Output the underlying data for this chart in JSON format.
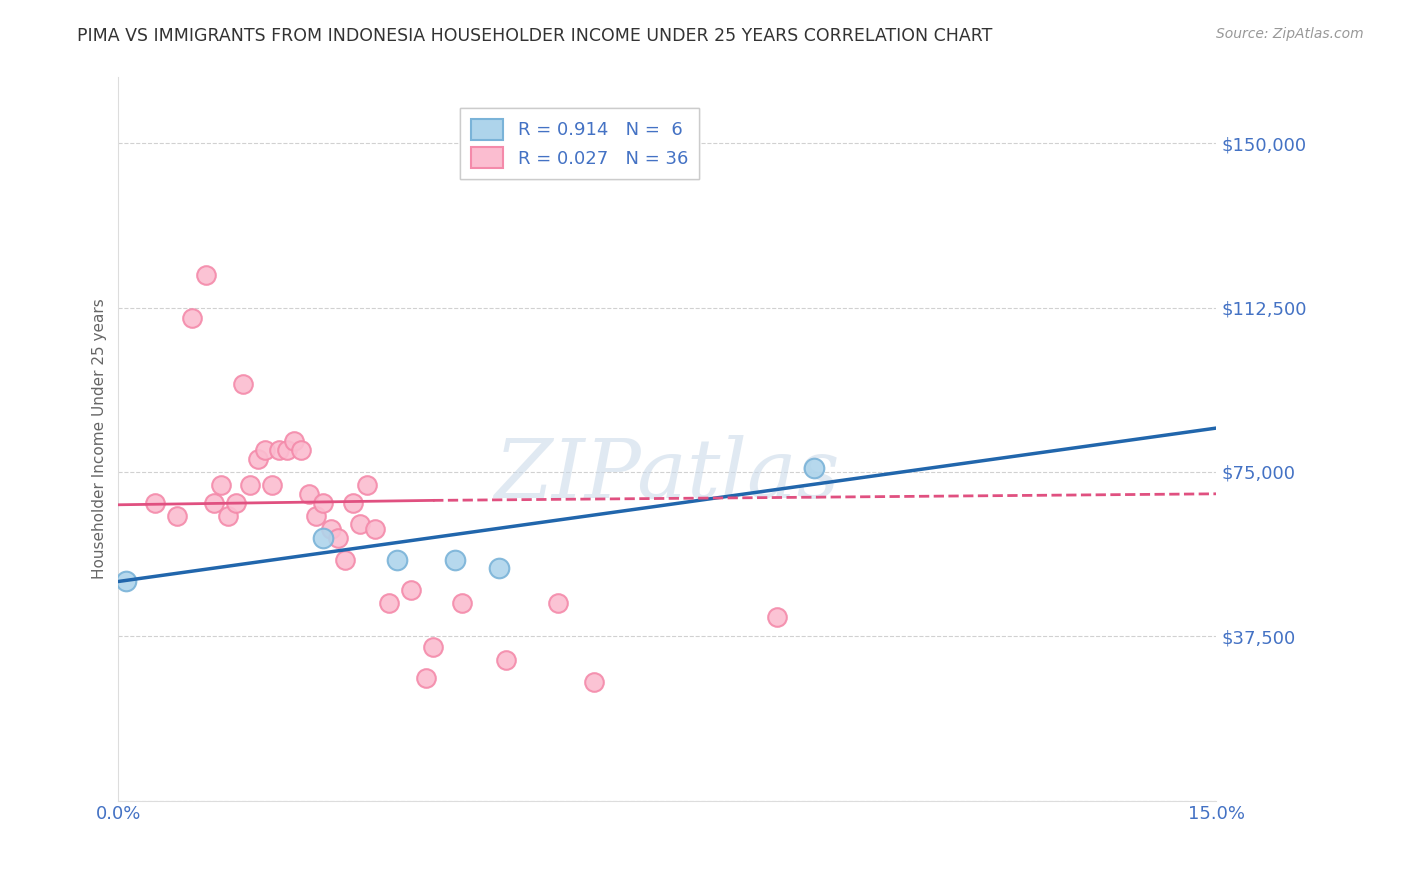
{
  "title": "PIMA VS IMMIGRANTS FROM INDONESIA HOUSEHOLDER INCOME UNDER 25 YEARS CORRELATION CHART",
  "source": "Source: ZipAtlas.com",
  "ylabel": "Householder Income Under 25 years",
  "x_min": 0.0,
  "x_max": 0.15,
  "y_min": 0,
  "y_max": 165000,
  "pima_color_edge": "#7ab3d8",
  "pima_color_fill": "#aed4eb",
  "indonesia_color_edge": "#f48aaa",
  "indonesia_color_fill": "#fbbdd0",
  "pima_R": "0.914",
  "pima_N": "6",
  "indonesia_R": "0.027",
  "indonesia_N": "36",
  "pima_line_color": "#2166ac",
  "indonesia_line_color": "#e05080",
  "legend_text_color": "#4472c4",
  "legend_label_color": "#333333",
  "pima_points_x": [
    0.001,
    0.028,
    0.038,
    0.046,
    0.052,
    0.095
  ],
  "pima_points_y": [
    50000,
    60000,
    55000,
    55000,
    53000,
    76000
  ],
  "indonesia_points_x": [
    0.005,
    0.008,
    0.01,
    0.012,
    0.013,
    0.014,
    0.015,
    0.016,
    0.017,
    0.018,
    0.019,
    0.02,
    0.021,
    0.022,
    0.023,
    0.024,
    0.025,
    0.026,
    0.027,
    0.028,
    0.029,
    0.03,
    0.031,
    0.032,
    0.033,
    0.034,
    0.035,
    0.037,
    0.04,
    0.042,
    0.043,
    0.047,
    0.053,
    0.06,
    0.065,
    0.09
  ],
  "indonesia_points_y": [
    68000,
    65000,
    110000,
    120000,
    68000,
    72000,
    65000,
    68000,
    95000,
    72000,
    78000,
    80000,
    72000,
    80000,
    80000,
    82000,
    80000,
    70000,
    65000,
    68000,
    62000,
    60000,
    55000,
    68000,
    63000,
    72000,
    62000,
    45000,
    48000,
    28000,
    35000,
    45000,
    32000,
    45000,
    27000,
    42000
  ],
  "watermark": "ZIPatlas",
  "grid_color": "#cccccc",
  "background_color": "#ffffff",
  "title_color": "#333333",
  "tick_label_color": "#4472c4",
  "axis_color": "#dddddd"
}
